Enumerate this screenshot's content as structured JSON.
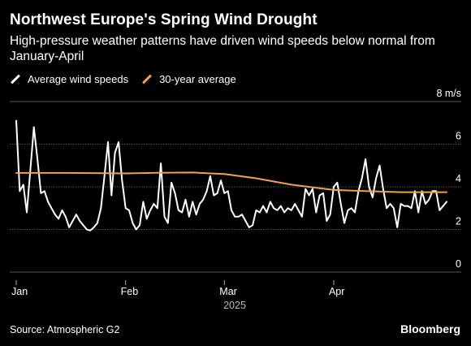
{
  "header": {
    "title": "Northwest Europe's Spring Wind Drought",
    "subtitle": "High-pressure weather patterns have driven wind speeds below normal from January-April"
  },
  "footer": {
    "source": "Source: Atmospheric G2",
    "brand": "Bloomberg"
  },
  "colors": {
    "background": "#000000",
    "series_actual": "#ffffff",
    "series_average": "#f5a04a",
    "grid": "#666666"
  },
  "chart_data": {
    "type": "line",
    "title": "Northwest Europe's Spring Wind Drought",
    "subtitle": "High-pressure weather patterns have driven wind speeds below normal from January-April",
    "xlabel": "2025",
    "ylabel": "8 m/s",
    "ylim": [
      0,
      8
    ],
    "yticks": [
      0,
      2,
      4,
      6
    ],
    "y_unit_label": "8 m/s",
    "xlim": [
      "2025-01-01",
      "2025-05-03"
    ],
    "x_tick_labels": [
      {
        "date": "2025-01-01",
        "label": "Jan"
      },
      {
        "date": "2025-02-01",
        "label": "Feb"
      },
      {
        "date": "2025-03-01",
        "label": "Mar"
      },
      {
        "date": "2025-04-01",
        "label": "Apr"
      }
    ],
    "x_year_label": "2025",
    "grid": true,
    "legend_placement": "top-left",
    "series": [
      {
        "name": "Average wind speeds",
        "color": "#ffffff",
        "x": [
          "2025-01-01",
          "2025-01-02",
          "2025-01-03",
          "2025-01-04",
          "2025-01-05",
          "2025-01-06",
          "2025-01-07",
          "2025-01-08",
          "2025-01-09",
          "2025-01-10",
          "2025-01-11",
          "2025-01-12",
          "2025-01-13",
          "2025-01-14",
          "2025-01-15",
          "2025-01-16",
          "2025-01-17",
          "2025-01-18",
          "2025-01-19",
          "2025-01-20",
          "2025-01-21",
          "2025-01-22",
          "2025-01-23",
          "2025-01-24",
          "2025-01-25",
          "2025-01-26",
          "2025-01-27",
          "2025-01-28",
          "2025-01-29",
          "2025-01-30",
          "2025-01-31",
          "2025-02-01",
          "2025-02-02",
          "2025-02-03",
          "2025-02-04",
          "2025-02-05",
          "2025-02-06",
          "2025-02-07",
          "2025-02-08",
          "2025-02-09",
          "2025-02-10",
          "2025-02-11",
          "2025-02-12",
          "2025-02-13",
          "2025-02-14",
          "2025-02-15",
          "2025-02-16",
          "2025-02-17",
          "2025-02-18",
          "2025-02-19",
          "2025-02-20",
          "2025-02-21",
          "2025-02-22",
          "2025-02-23",
          "2025-02-24",
          "2025-02-25",
          "2025-02-26",
          "2025-02-27",
          "2025-02-28",
          "2025-03-01",
          "2025-03-02",
          "2025-03-03",
          "2025-03-04",
          "2025-03-05",
          "2025-03-06",
          "2025-03-07",
          "2025-03-08",
          "2025-03-09",
          "2025-03-10",
          "2025-03-11",
          "2025-03-12",
          "2025-03-13",
          "2025-03-14",
          "2025-03-15",
          "2025-03-16",
          "2025-03-17",
          "2025-03-18",
          "2025-03-19",
          "2025-03-20",
          "2025-03-21",
          "2025-03-22",
          "2025-03-23",
          "2025-03-24",
          "2025-03-25",
          "2025-03-26",
          "2025-03-27",
          "2025-03-28",
          "2025-03-29",
          "2025-03-30",
          "2025-03-31",
          "2025-04-01",
          "2025-04-02",
          "2025-04-03",
          "2025-04-04",
          "2025-04-05",
          "2025-04-06",
          "2025-04-07",
          "2025-04-08",
          "2025-04-09",
          "2025-04-10",
          "2025-04-11",
          "2025-04-12",
          "2025-04-13",
          "2025-04-14",
          "2025-04-15",
          "2025-04-16",
          "2025-04-17",
          "2025-04-18",
          "2025-04-19",
          "2025-04-20",
          "2025-04-21",
          "2025-04-22",
          "2025-04-23",
          "2025-04-24",
          "2025-04-25",
          "2025-04-26",
          "2025-04-27",
          "2025-04-28",
          "2025-04-29",
          "2025-04-30",
          "2025-05-01",
          "2025-05-02",
          "2025-05-03"
        ],
        "values": [
          7.1,
          3.8,
          4.1,
          2.8,
          4.8,
          6.8,
          5.3,
          3.7,
          3.8,
          3.3,
          3.0,
          2.7,
          2.5,
          2.9,
          2.6,
          2.1,
          2.4,
          2.7,
          2.4,
          2.2,
          2.0,
          1.95,
          2.1,
          2.3,
          3.0,
          4.5,
          6.1,
          3.6,
          5.6,
          6.1,
          4.3,
          3.0,
          2.9,
          2.3,
          2.0,
          2.2,
          3.3,
          2.5,
          2.9,
          3.2,
          3.0,
          5.1,
          2.6,
          2.3,
          4.2,
          3.7,
          2.9,
          2.8,
          3.4,
          2.6,
          3.3,
          2.7,
          3.2,
          3.4,
          3.8,
          4.5,
          3.6,
          3.7,
          4.3,
          3.7,
          3.8,
          2.9,
          2.6,
          2.6,
          2.7,
          2.4,
          2.1,
          2.2,
          2.9,
          2.8,
          3.1,
          2.8,
          3.3,
          3.0,
          2.9,
          3.1,
          2.8,
          3.0,
          2.9,
          3.2,
          2.9,
          2.6,
          3.9,
          3.6,
          3.9,
          2.8,
          3.6,
          3.7,
          2.4,
          2.7,
          4.0,
          4.2,
          3.2,
          2.3,
          2.9,
          3.0,
          2.8,
          3.8,
          4.4,
          5.3,
          4.0,
          3.5,
          4.4,
          5.0,
          3.9,
          3.0,
          3.2,
          3.0,
          2.1,
          3.2,
          3.1,
          3.1,
          3.0,
          3.8,
          2.8,
          3.8,
          3.2,
          3.4,
          3.8,
          3.8,
          2.9,
          3.1,
          3.3
        ]
      },
      {
        "name": "30-year average",
        "color": "#f5a04a",
        "x": [
          "2025-01-01",
          "2025-01-15",
          "2025-02-01",
          "2025-02-10",
          "2025-02-20",
          "2025-03-01",
          "2025-03-10",
          "2025-03-20",
          "2025-04-01",
          "2025-04-10",
          "2025-04-20",
          "2025-05-03"
        ],
        "values": [
          4.65,
          4.65,
          4.63,
          4.66,
          4.67,
          4.6,
          4.4,
          4.1,
          3.85,
          3.8,
          3.75,
          3.75
        ]
      }
    ]
  }
}
